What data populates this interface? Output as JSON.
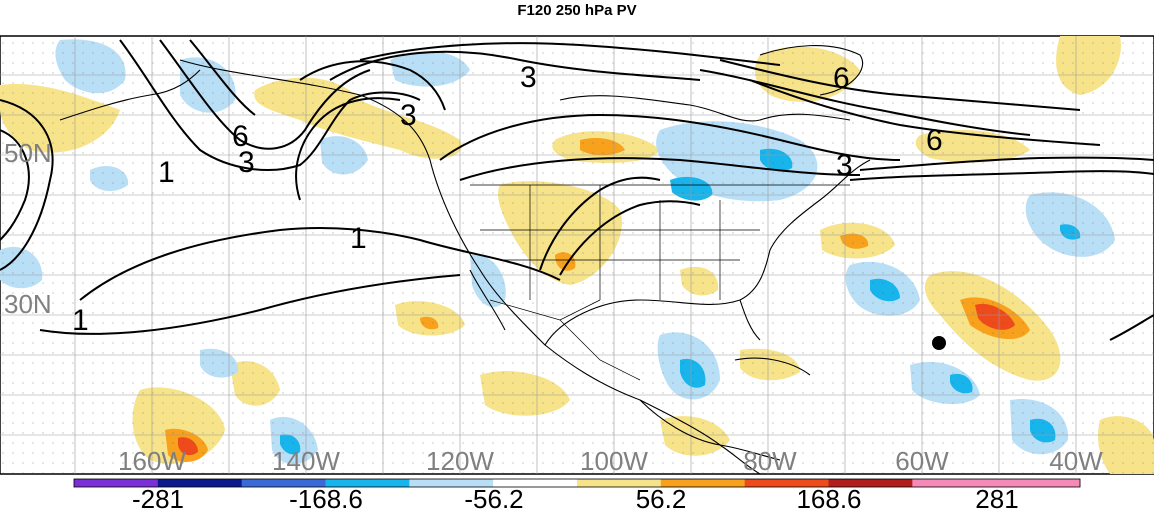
{
  "title": "F120 250 hPa PV",
  "map": {
    "lat_labels": [
      "50N",
      "30N"
    ],
    "lon_labels": [
      "160W",
      "140W",
      "120W",
      "100W",
      "80W",
      "60W",
      "40W"
    ],
    "contour_labels": [
      "1",
      "3",
      "6"
    ],
    "colors": {
      "neg_strong": "#7b2fd6",
      "neg_mid": "#0a1a8c",
      "neg_weak_dark": "#3a6ad8",
      "neg_weak": "#18b4ec",
      "neg_light": "#b9dff7",
      "neutral": "#ffffff",
      "pos_light": "#f7e38a",
      "pos_weak": "#f7a11c",
      "pos_mid": "#ee4a1c",
      "pos_strong": "#b01e1e",
      "pos_pink": "#f58ab8",
      "land_outline": "#000000",
      "grid": "#888888",
      "label_grey": "#808080"
    }
  },
  "colorbar": {
    "labels": [
      "-281",
      "-168.6",
      "-56.2",
      "56.2",
      "168.6",
      "281"
    ],
    "segment_colors": [
      "#7b2fd6",
      "#0a1a8c",
      "#3a6ad8",
      "#18b4ec",
      "#b9dff7",
      "#ffffff",
      "#f7e38a",
      "#f7a11c",
      "#ee4a1c",
      "#b01e1e",
      "#f58ab8",
      "#f58ab8"
    ]
  }
}
